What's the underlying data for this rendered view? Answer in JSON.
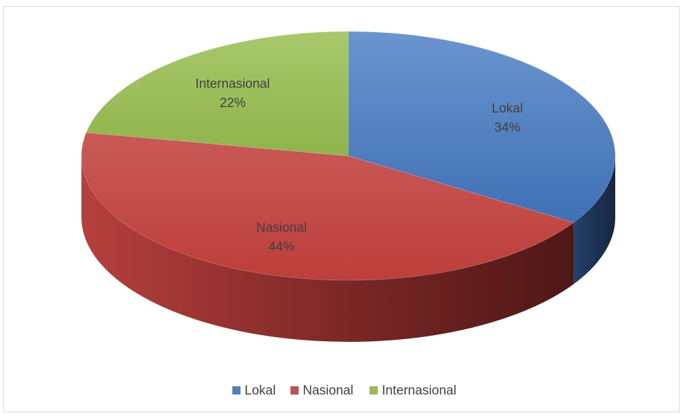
{
  "chart_data": {
    "type": "pie",
    "title": "",
    "style": "3d",
    "categories": [
      "Lokal",
      "Nasional",
      "Internasional"
    ],
    "values": [
      34,
      44,
      22
    ],
    "data_labels": [
      "34%",
      "44%",
      "22%"
    ],
    "colors": [
      "#4f81bd",
      "#c0504d",
      "#9bbb59"
    ],
    "legend": {
      "position": "bottom",
      "items": [
        "Lokal",
        "Nasional",
        "Internasional"
      ]
    }
  }
}
